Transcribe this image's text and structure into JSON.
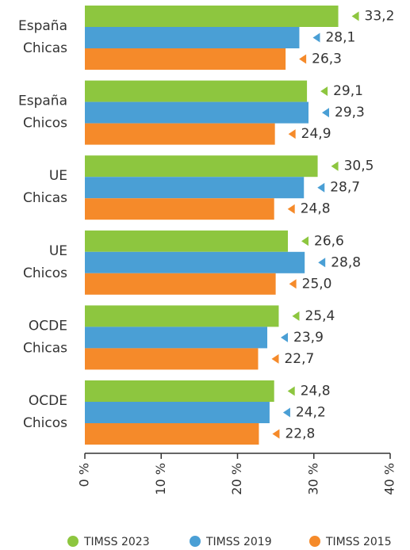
{
  "chart_data": {
    "type": "bar",
    "orientation": "horizontal",
    "categories": [
      "España Chicas",
      "España Chicos",
      "UE Chicas",
      "UE Chicos",
      "OCDE Chicas",
      "OCDE Chicos"
    ],
    "series": [
      {
        "name": "TIMSS 2023",
        "color": "#8dc63f",
        "values": [
          33.2,
          29.1,
          30.5,
          26.6,
          25.4,
          24.8
        ],
        "value_labels": [
          "33,2",
          "29,1",
          "30,5",
          "26,6",
          "25,4",
          "24,8"
        ]
      },
      {
        "name": "TIMSS 2019",
        "color": "#4a9fd5",
        "values": [
          28.1,
          29.3,
          28.7,
          28.8,
          23.9,
          24.2
        ],
        "value_labels": [
          "28,1",
          "29,3",
          "28,7",
          "28,8",
          "23,9",
          "24,2"
        ]
      },
      {
        "name": "TIMSS 2015",
        "color": "#f58a2a",
        "values": [
          26.3,
          24.9,
          24.8,
          25.0,
          22.7,
          22.8
        ],
        "value_labels": [
          "26,3",
          "24,9",
          "24,8",
          "25,0",
          "22,7",
          "22,8"
        ]
      }
    ],
    "xlim": [
      0,
      40
    ],
    "xticks": [
      {
        "value": 0,
        "label": "0 %"
      },
      {
        "value": 10,
        "label": "10 %"
      },
      {
        "value": 20,
        "label": "20 %"
      },
      {
        "value": 30,
        "label": "30 %"
      },
      {
        "value": 40,
        "label": "40 %"
      }
    ],
    "legend": "bottom"
  }
}
